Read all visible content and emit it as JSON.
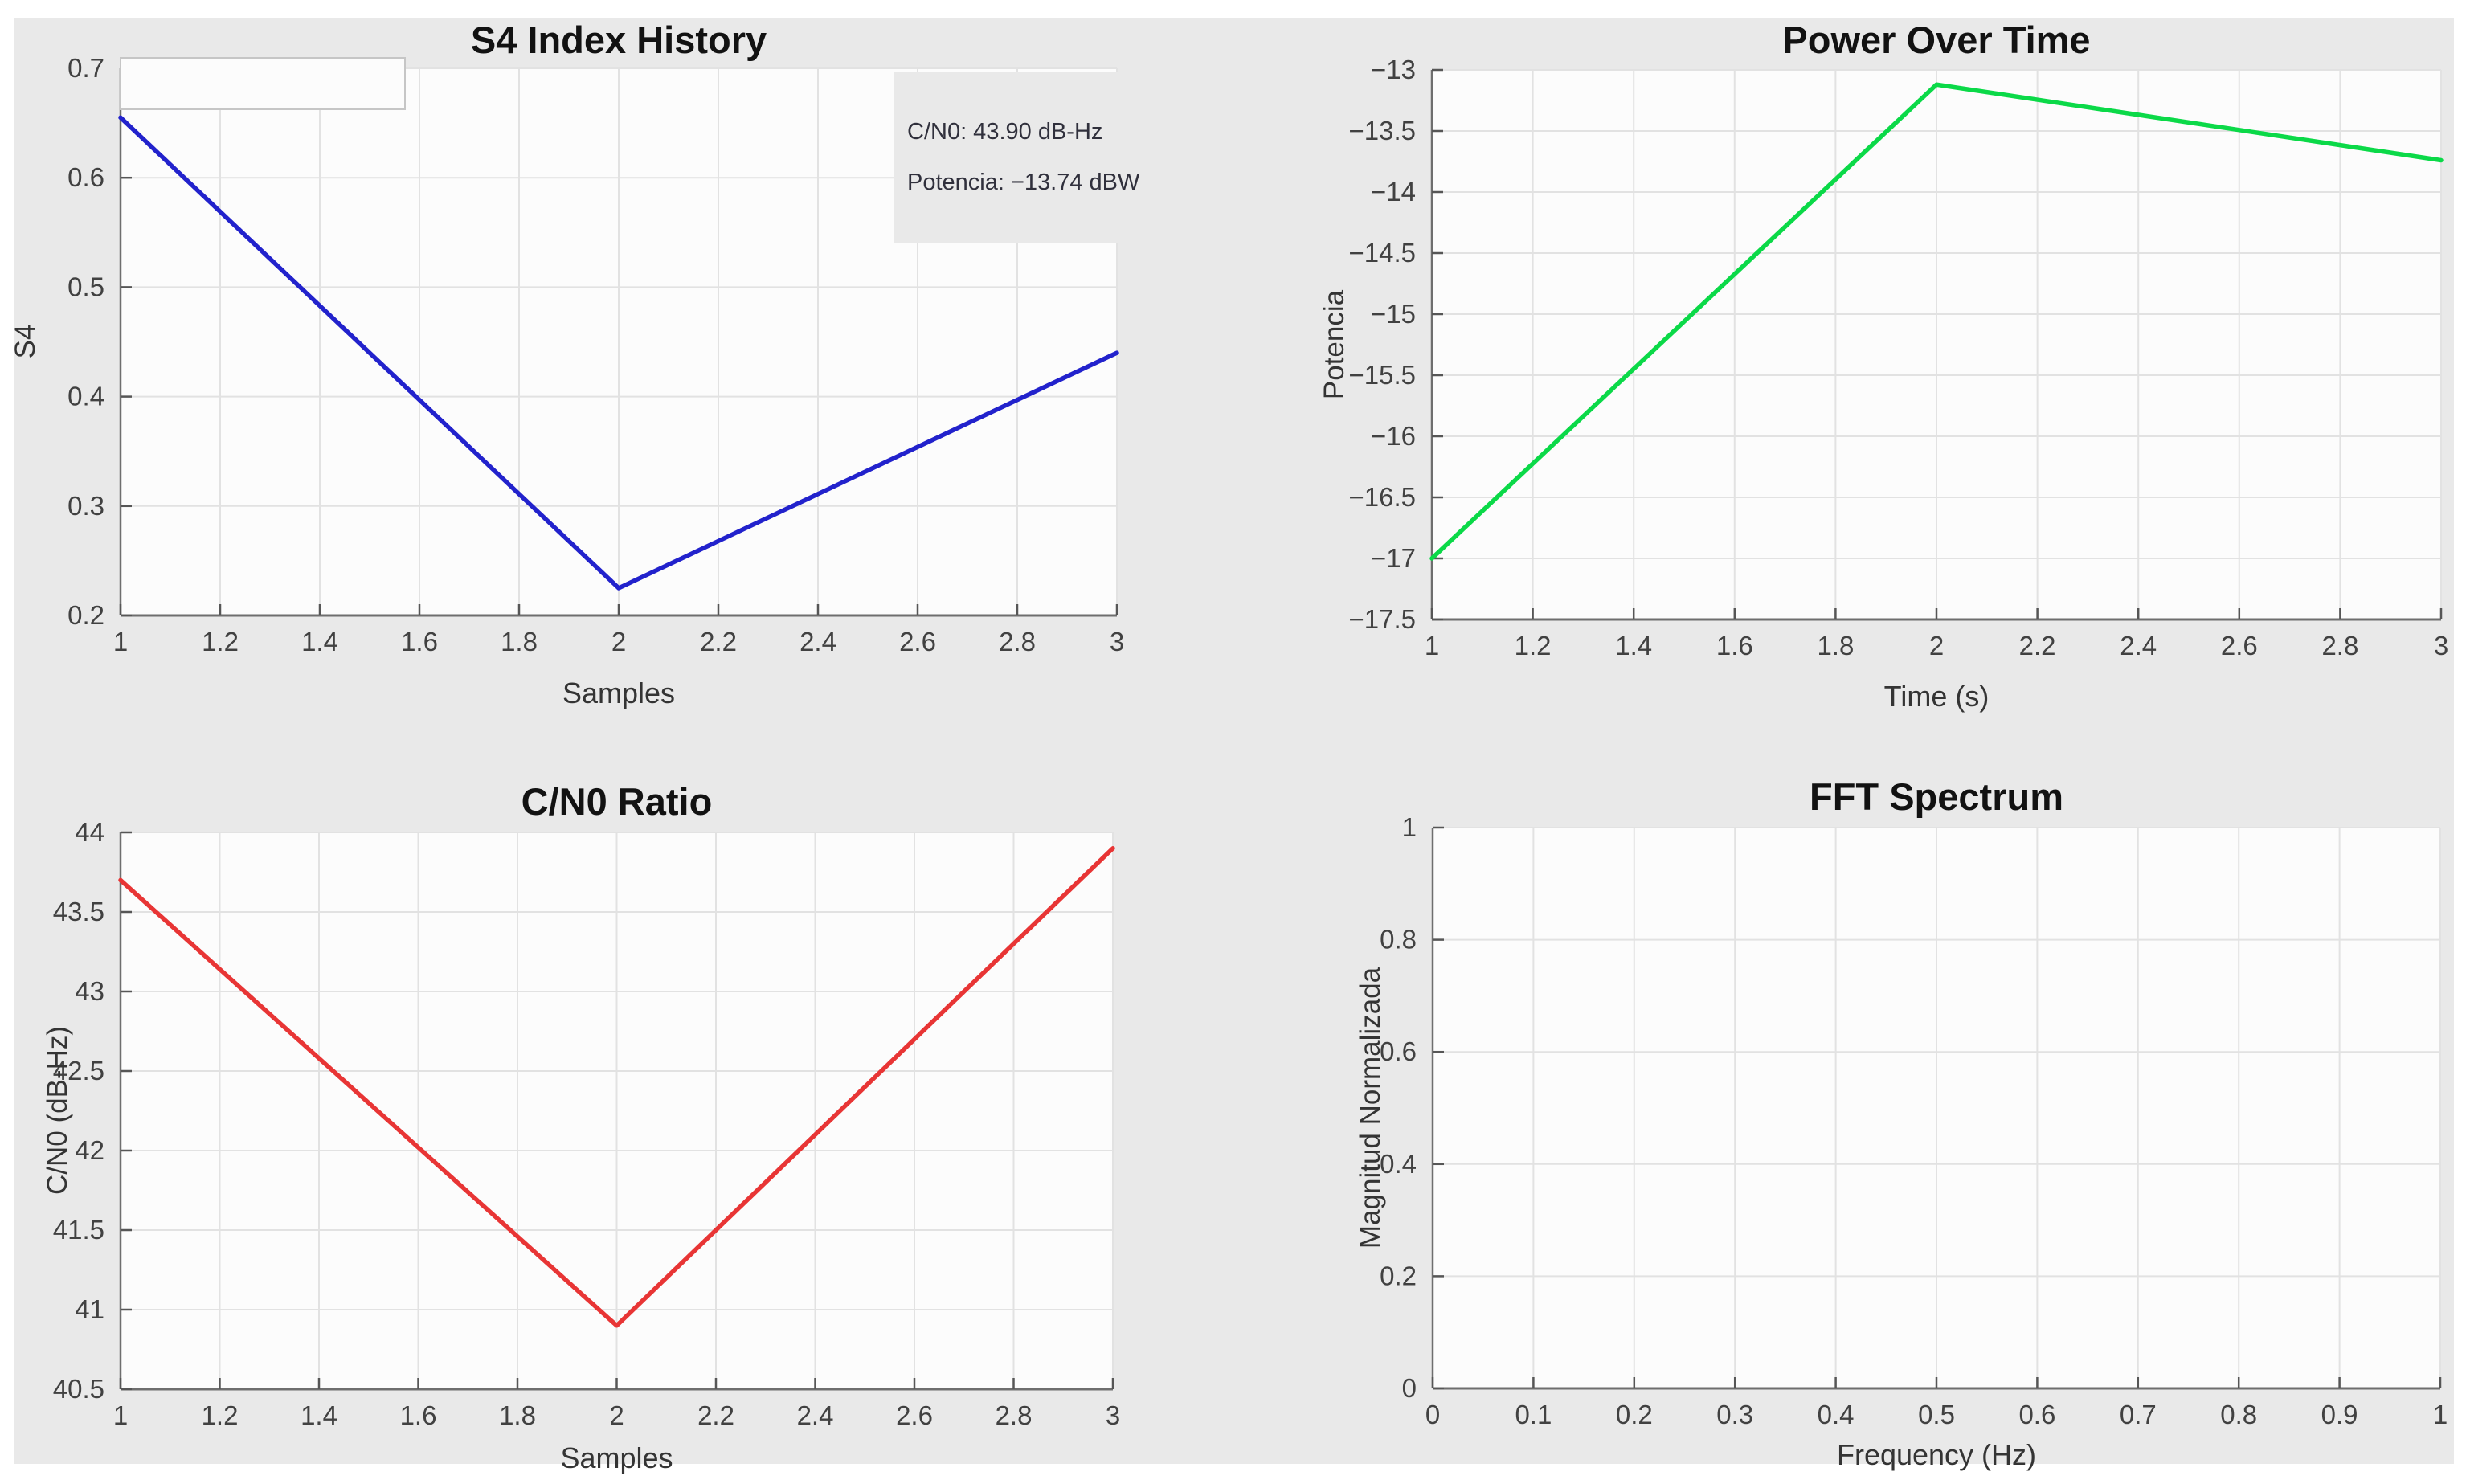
{
  "figure": {
    "background_color": "#e9e9e9",
    "page_background": "#ffffff",
    "axes_background": "#fcfcfc",
    "grid_color": "#e2e2e2",
    "spine_color": "#6e6e6e"
  },
  "chart_data": [
    {
      "type": "line",
      "title": "S4 Index History",
      "xlabel": "Samples",
      "ylabel": "S4",
      "xlim": [
        1,
        3
      ],
      "ylim": [
        0.2,
        0.7
      ],
      "grid": true,
      "x_ticks": [
        1,
        1.2,
        1.4,
        1.6,
        1.8,
        2,
        2.2,
        2.4,
        2.6,
        2.8,
        3
      ],
      "x_tick_labels": [
        "1",
        "1.2",
        "1.4",
        "1.6",
        "1.8",
        "2",
        "2.2",
        "2.4",
        "2.6",
        "2.8",
        "3"
      ],
      "y_ticks": [
        0.2,
        0.3,
        0.4,
        0.5,
        0.6,
        0.7
      ],
      "y_tick_labels": [
        "0.2",
        "0.3",
        "0.4",
        "0.5",
        "0.6",
        "0.7"
      ],
      "series": [
        {
          "name": "S4",
          "color": "#2222cc",
          "x": [
            1,
            2,
            3
          ],
          "y": [
            0.655,
            0.225,
            0.44
          ]
        }
      ],
      "legend": {
        "visible": true,
        "empty": true,
        "position": "northwest"
      },
      "annotation": {
        "line1": "C/N0: 43.90 dB-Hz",
        "line2": "Potencia: −13.74 dBW"
      }
    },
    {
      "type": "line",
      "title": "Power Over Time",
      "xlabel": "Time (s)",
      "ylabel": "Potencia",
      "xlim": [
        1,
        3
      ],
      "ylim": [
        -17.5,
        -13
      ],
      "grid": true,
      "x_ticks": [
        1,
        1.2,
        1.4,
        1.6,
        1.8,
        2,
        2.2,
        2.4,
        2.6,
        2.8,
        3
      ],
      "x_tick_labels": [
        "1",
        "1.2",
        "1.4",
        "1.6",
        "1.8",
        "2",
        "2.2",
        "2.4",
        "2.6",
        "2.8",
        "3"
      ],
      "y_ticks": [
        -13,
        -13.5,
        -14,
        -14.5,
        -15,
        -15.5,
        -16,
        -16.5,
        -17,
        -17.5
      ],
      "y_tick_labels": [
        "−13",
        "−13.5",
        "−14",
        "−14.5",
        "−15",
        "−15.5",
        "−16",
        "−16.5",
        "−17",
        "−17.5"
      ],
      "series": [
        {
          "name": "Potencia",
          "color": "#0bd948",
          "x": [
            1,
            2,
            3
          ],
          "y": [
            -17.0,
            -13.12,
            -13.74
          ]
        }
      ]
    },
    {
      "type": "line",
      "title": "C/N0 Ratio",
      "xlabel": "Samples",
      "ylabel": "C/N0 (dB-Hz)",
      "xlim": [
        1,
        3
      ],
      "ylim": [
        40.5,
        44
      ],
      "grid": true,
      "x_ticks": [
        1,
        1.2,
        1.4,
        1.6,
        1.8,
        2,
        2.2,
        2.4,
        2.6,
        2.8,
        3
      ],
      "x_tick_labels": [
        "1",
        "1.2",
        "1.4",
        "1.6",
        "1.8",
        "2",
        "2.2",
        "2.4",
        "2.6",
        "2.8",
        "3"
      ],
      "y_ticks": [
        40.5,
        41,
        41.5,
        42,
        42.5,
        43,
        43.5,
        44
      ],
      "y_tick_labels": [
        "40.5",
        "41",
        "41.5",
        "42",
        "42.5",
        "43",
        "43.5",
        "44"
      ],
      "series": [
        {
          "name": "C/N0",
          "color": "#e83535",
          "x": [
            1,
            2,
            3
          ],
          "y": [
            43.7,
            40.9,
            43.9
          ]
        }
      ]
    },
    {
      "type": "line",
      "title": "FFT Spectrum",
      "xlabel": "Frequency (Hz)",
      "ylabel": "Magnitud Normalizada",
      "xlim": [
        0,
        1
      ],
      "ylim": [
        0,
        1
      ],
      "grid": true,
      "x_ticks": [
        0,
        0.1,
        0.2,
        0.3,
        0.4,
        0.5,
        0.6,
        0.7,
        0.8,
        0.9,
        1
      ],
      "x_tick_labels": [
        "0",
        "0.1",
        "0.2",
        "0.3",
        "0.4",
        "0.5",
        "0.6",
        "0.7",
        "0.8",
        "0.9",
        "1"
      ],
      "y_ticks": [
        0,
        0.2,
        0.4,
        0.6,
        0.8,
        1
      ],
      "y_tick_labels": [
        "0",
        "0.2",
        "0.4",
        "0.6",
        "0.8",
        "1"
      ],
      "series": []
    }
  ]
}
